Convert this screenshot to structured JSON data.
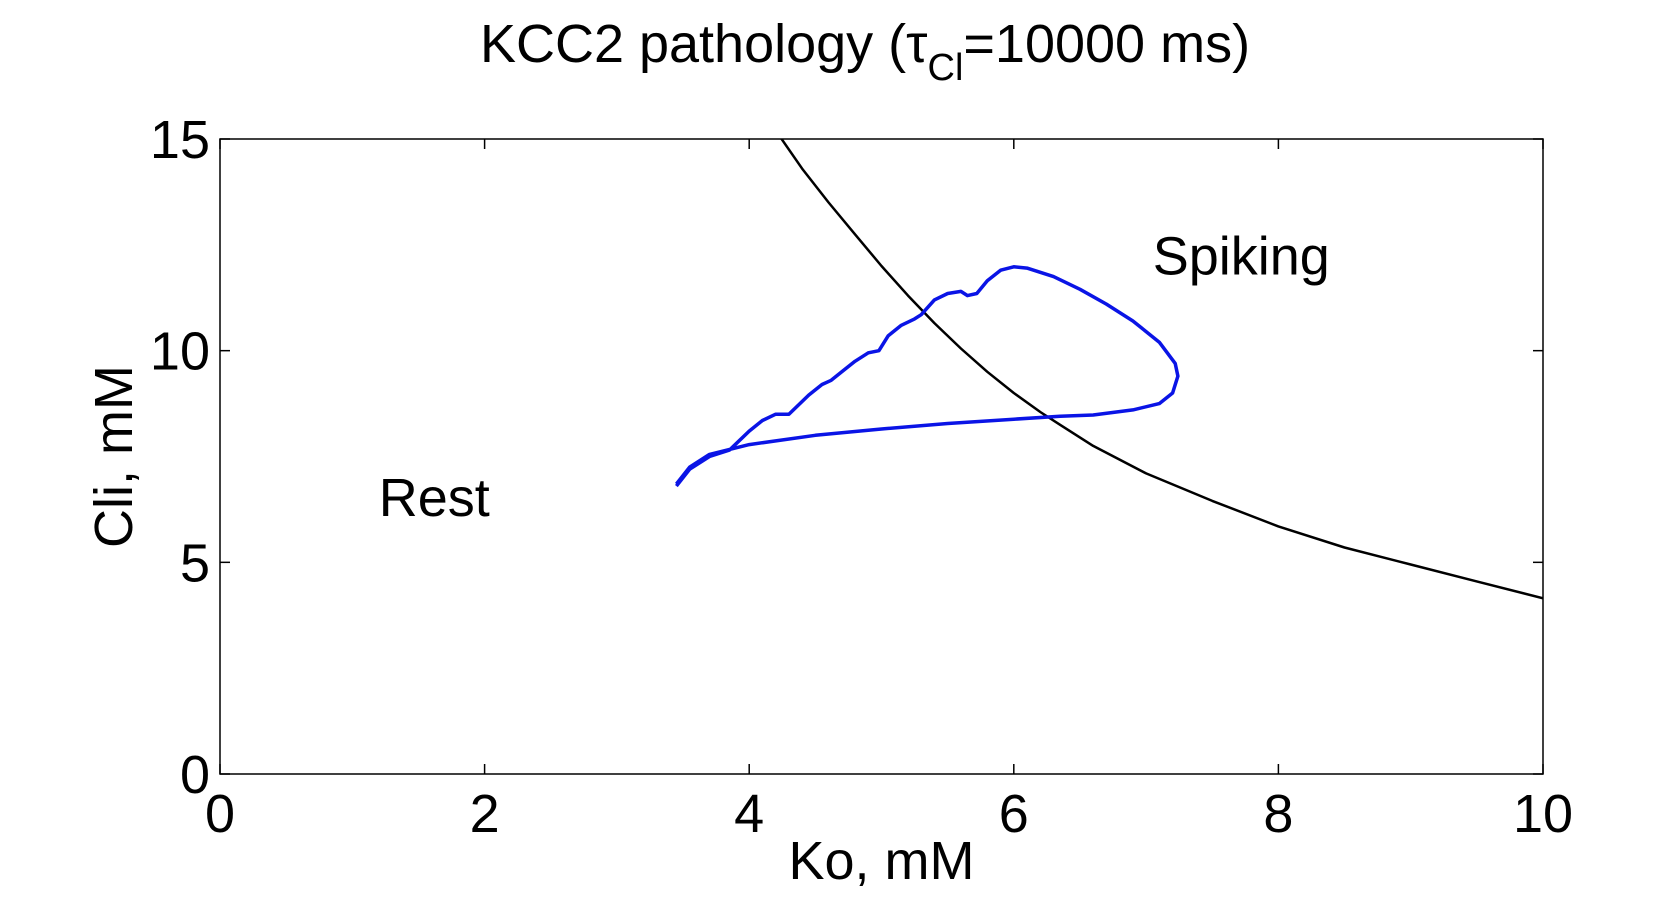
{
  "chart_data": {
    "type": "line",
    "title_main": "KCC2 pathology (τ",
    "title_sub": "Cl",
    "title_end": "=10000 ms)",
    "xlabel": "Ko, mM",
    "ylabel": "Cli, mM",
    "xlim": [
      0,
      10
    ],
    "ylim": [
      0,
      15
    ],
    "xticks": [
      0,
      2,
      4,
      6,
      8,
      10
    ],
    "yticks": [
      0,
      5,
      10,
      15
    ],
    "grid": false,
    "annotations": [
      {
        "name": "rest-label",
        "text": "Rest",
        "x": 1.2,
        "y": 6.1
      },
      {
        "name": "spiking-label",
        "text": "Spiking",
        "x": 7.05,
        "y": 11.8
      }
    ],
    "series": [
      {
        "color": "#000000",
        "x": [
          4.2,
          4.4,
          4.6,
          4.8,
          5.0,
          5.2,
          5.4,
          5.6,
          5.8,
          6.0,
          6.2,
          6.35,
          6.6,
          7.0,
          7.5,
          8.0,
          8.5,
          9.0,
          9.5,
          10.0
        ],
        "y": [
          15.2,
          14.3,
          13.5,
          12.75,
          12.0,
          11.3,
          10.65,
          10.05,
          9.5,
          9.0,
          8.55,
          8.25,
          7.75,
          7.1,
          6.45,
          5.85,
          5.35,
          4.95,
          4.55,
          4.15
        ]
      },
      {
        "color": "#0a14e6",
        "x": [
          3.45,
          3.55,
          3.7,
          3.85,
          3.9,
          4.0,
          4.1,
          4.2,
          4.3,
          4.45,
          4.55,
          4.62,
          4.7,
          4.8,
          4.9,
          4.98,
          5.05,
          5.15,
          5.25,
          5.3,
          5.4,
          5.5,
          5.6,
          5.65,
          5.72,
          5.8,
          5.9,
          6.0,
          6.1,
          6.3,
          6.5,
          6.7,
          6.9,
          7.1,
          7.22,
          7.24,
          7.2,
          7.1,
          6.9,
          6.6,
          6.35,
          6.0,
          5.5,
          5.0,
          4.5,
          4.0,
          3.7,
          3.55,
          3.45
        ],
        "y": [
          6.8,
          7.2,
          7.5,
          7.65,
          7.8,
          8.1,
          8.35,
          8.5,
          8.5,
          8.95,
          9.2,
          9.3,
          9.5,
          9.75,
          9.95,
          10.0,
          10.35,
          10.6,
          10.75,
          10.85,
          11.2,
          11.35,
          11.4,
          11.3,
          11.35,
          11.65,
          11.9,
          11.98,
          11.95,
          11.75,
          11.45,
          11.1,
          10.7,
          10.2,
          9.7,
          9.4,
          9.0,
          8.75,
          8.6,
          8.48,
          8.45,
          8.38,
          8.28,
          8.15,
          8.0,
          7.78,
          7.55,
          7.25,
          6.85
        ]
      }
    ]
  }
}
